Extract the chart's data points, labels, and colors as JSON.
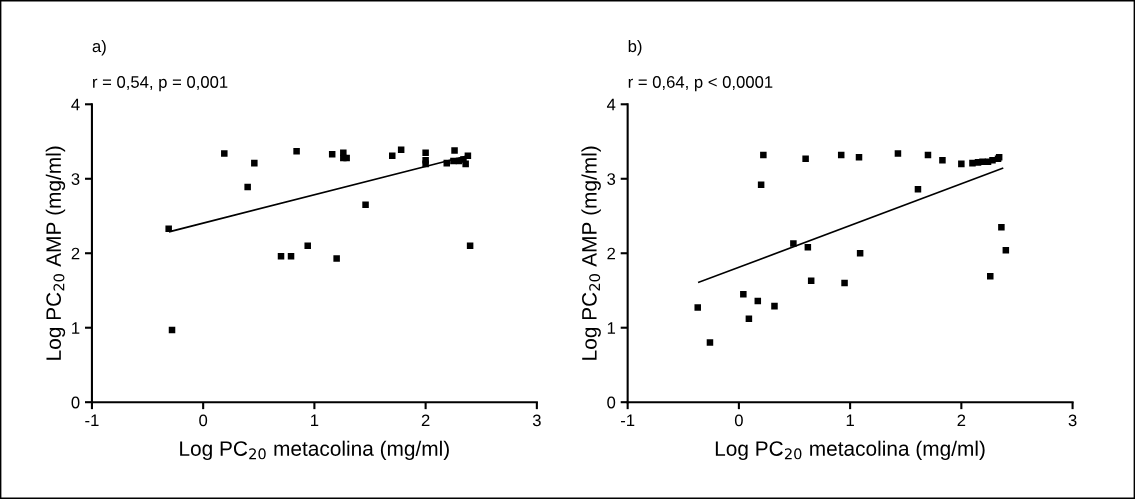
{
  "chart_data": [
    {
      "type": "scatter",
      "annotations": [
        "a)",
        "r = 0,54, p = 0,001"
      ],
      "xlabel": "Log PC$_{20}$ metacolina (mg/ml)",
      "ylabel": "Log PC$_{20}$ AMP (mg/ml)",
      "xlim": [
        -1,
        3
      ],
      "xticks": [
        -1,
        0,
        1,
        2,
        3
      ],
      "ylim": [
        0,
        4
      ],
      "yticks": [
        0,
        1,
        2,
        3,
        4
      ],
      "grid": false,
      "legend": false,
      "series": [
        {
          "marker": "square",
          "color": "#000000",
          "x": [
            -0.31,
            -0.28,
            0.19,
            0.4,
            0.46,
            0.7,
            0.79,
            0.84,
            0.94,
            1.16,
            1.2,
            1.26,
            1.26,
            1.29,
            1.46,
            1.7,
            1.78,
            2.0,
            2.0,
            2.0,
            2.19,
            2.26,
            2.25,
            2.3,
            2.34,
            2.36,
            2.38,
            2.4
          ],
          "values": [
            2.33,
            0.97,
            3.34,
            2.89,
            3.21,
            1.96,
            1.96,
            3.37,
            2.1,
            3.33,
            1.93,
            3.35,
            3.28,
            3.28,
            2.65,
            3.31,
            3.39,
            3.35,
            3.25,
            3.2,
            3.21,
            3.38,
            3.24,
            3.24,
            3.26,
            3.2,
            3.31,
            2.1
          ]
        },
        {
          "type": "line",
          "color": "#000000",
          "x": [
            -0.3,
            2.38
          ],
          "values": [
            2.29,
            3.31
          ]
        }
      ]
    },
    {
      "type": "scatter",
      "annotations": [
        "b)",
        "r = 0,64, p < 0,0001"
      ],
      "xlabel": "Log PC$_{20}$ metacolina (mg/ml)",
      "ylabel": "Log PC$_{20}$ AMP (mg/ml)",
      "xlim": [
        -1,
        3
      ],
      "xticks": [
        -1,
        0,
        1,
        2,
        3
      ],
      "ylim": [
        0,
        4
      ],
      "yticks": [
        0,
        1,
        2,
        3,
        4
      ],
      "grid": false,
      "legend": false,
      "series": [
        {
          "marker": "square",
          "color": "#000000",
          "x": [
            -0.37,
            -0.26,
            0.04,
            0.09,
            0.17,
            0.2,
            0.22,
            0.32,
            0.49,
            0.6,
            0.62,
            0.65,
            0.92,
            0.95,
            1.08,
            1.09,
            1.43,
            1.61,
            1.7,
            1.83,
            2.0,
            2.1,
            2.15,
            2.19,
            2.24,
            2.26,
            2.28,
            2.33,
            2.34,
            2.36,
            2.4
          ],
          "values": [
            1.27,
            0.8,
            1.45,
            1.12,
            1.36,
            2.92,
            3.32,
            1.29,
            2.13,
            3.27,
            2.08,
            1.63,
            3.32,
            1.6,
            3.29,
            2.0,
            3.34,
            2.86,
            3.32,
            3.25,
            3.2,
            3.21,
            3.22,
            3.23,
            3.23,
            1.69,
            3.25,
            3.27,
            3.29,
            2.35,
            2.04
          ]
        },
        {
          "type": "line",
          "color": "#000000",
          "x": [
            -0.36,
            2.37
          ],
          "values": [
            1.61,
            3.14
          ]
        }
      ]
    }
  ]
}
